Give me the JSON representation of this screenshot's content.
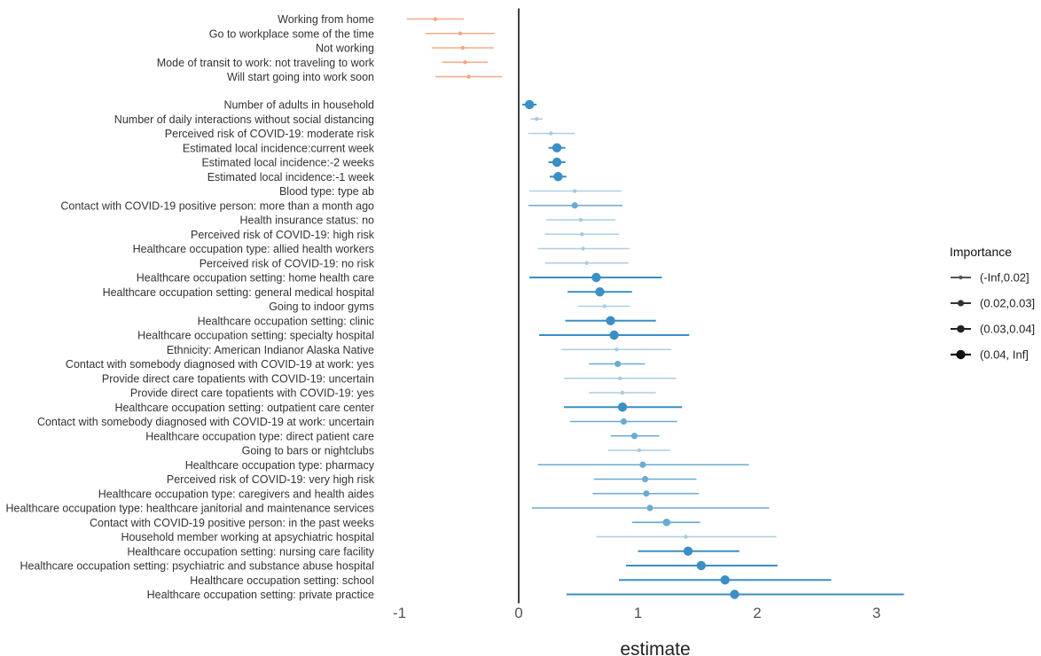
{
  "chart_data": {
    "type": "scatter",
    "subtype": "coefficient-plot-with-error-bars",
    "xlabel": "estimate",
    "xlim": [
      -1,
      3
    ],
    "xticks": [
      "-1",
      "0",
      "1",
      "2",
      "3"
    ],
    "grid": false,
    "legend": {
      "title": "Importance",
      "placement": "right",
      "entries": [
        "(-Inf,0.02]",
        "(0.02,0.03]",
        "(0.03,0.04]",
        "(0.04, Inf]"
      ]
    },
    "colors": {
      "negative": "#f4a582",
      "positive_light": "#a6cbe3",
      "positive_mid": "#6aabd2",
      "positive_dark": "#3a8fc4",
      "zero_line": "#000000"
    },
    "groups": [
      {
        "rows": [
          {
            "label": "Working from home",
            "est": -0.7,
            "lo": -0.94,
            "hi": -0.46,
            "imp": 1
          },
          {
            "label": "Go to workplace some of the time",
            "est": -0.49,
            "lo": -0.78,
            "hi": -0.2,
            "imp": 1
          },
          {
            "label": "Not working",
            "est": -0.47,
            "lo": -0.73,
            "hi": -0.21,
            "imp": 1
          },
          {
            "label": "Mode of transit to work: not traveling to work",
            "est": -0.45,
            "lo": -0.64,
            "hi": -0.26,
            "imp": 1
          },
          {
            "label": "Will start going into work soon",
            "est": -0.42,
            "lo": -0.7,
            "hi": -0.14,
            "imp": 1
          }
        ]
      },
      {
        "rows": [
          {
            "label": "Number of adults in household",
            "est": 0.09,
            "lo": 0.03,
            "hi": 0.15,
            "imp": 4
          },
          {
            "label": "Number of daily interactions without social distancing",
            "est": 0.15,
            "lo": 0.1,
            "hi": 0.2,
            "imp": 1
          },
          {
            "label": "Perceived risk of COVID-19: moderate risk",
            "est": 0.27,
            "lo": 0.08,
            "hi": 0.47,
            "imp": 1
          },
          {
            "label": "Estimated local incidence:current week",
            "est": 0.32,
            "lo": 0.25,
            "hi": 0.39,
            "imp": 4
          },
          {
            "label": "Estimated local incidence:-2 weeks",
            "est": 0.32,
            "lo": 0.25,
            "hi": 0.39,
            "imp": 4
          },
          {
            "label": "Estimated local incidence:-1 week",
            "est": 0.33,
            "lo": 0.26,
            "hi": 0.4,
            "imp": 4
          },
          {
            "label": "Blood type: type ab",
            "est": 0.47,
            "lo": 0.09,
            "hi": 0.86,
            "imp": 1
          },
          {
            "label": "Contact with COVID-19 positive person: more than a month ago",
            "est": 0.47,
            "lo": 0.08,
            "hi": 0.87,
            "imp": 2
          },
          {
            "label": "Health insurance status: no",
            "est": 0.52,
            "lo": 0.23,
            "hi": 0.81,
            "imp": 1
          },
          {
            "label": "Perceived risk of COVID-19: high risk",
            "est": 0.53,
            "lo": 0.22,
            "hi": 0.84,
            "imp": 1
          },
          {
            "label": "Healthcare occupation type: allied health workers",
            "est": 0.54,
            "lo": 0.16,
            "hi": 0.93,
            "imp": 1
          },
          {
            "label": "Perceived risk of COVID-19: no risk",
            "est": 0.57,
            "lo": 0.22,
            "hi": 0.92,
            "imp": 1
          },
          {
            "label": "Healthcare occupation setting: home health care",
            "est": 0.65,
            "lo": 0.09,
            "hi": 1.2,
            "imp": 4
          },
          {
            "label": "Healthcare occupation setting: general medical hospital",
            "est": 0.68,
            "lo": 0.41,
            "hi": 0.95,
            "imp": 4
          },
          {
            "label": "Going to indoor gyms",
            "est": 0.72,
            "lo": 0.5,
            "hi": 0.93,
            "imp": 1
          },
          {
            "label": "Healthcare occupation setting: clinic",
            "est": 0.77,
            "lo": 0.39,
            "hi": 1.15,
            "imp": 4
          },
          {
            "label": "Healthcare occupation setting: specialty hospital",
            "est": 0.8,
            "lo": 0.17,
            "hi": 1.43,
            "imp": 4
          },
          {
            "label": "Ethnicity: American Indianor Alaska Native",
            "est": 0.82,
            "lo": 0.36,
            "hi": 1.28,
            "imp": 1
          },
          {
            "label": "Contact with somebody diagnosed with COVID-19 at work: yes",
            "est": 0.83,
            "lo": 0.59,
            "hi": 1.06,
            "imp": 2
          },
          {
            "label": "Provide direct care topatients with COVID-19: uncertain",
            "est": 0.85,
            "lo": 0.38,
            "hi": 1.32,
            "imp": 1
          },
          {
            "label": "Provide direct care topatients with COVID-19: yes",
            "est": 0.87,
            "lo": 0.59,
            "hi": 1.15,
            "imp": 1
          },
          {
            "label": "Healthcare occupation setting: outpatient care center",
            "est": 0.87,
            "lo": 0.38,
            "hi": 1.37,
            "imp": 4
          },
          {
            "label": "Contact with somebody diagnosed with COVID-19 at work: uncertain",
            "est": 0.88,
            "lo": 0.43,
            "hi": 1.33,
            "imp": 2
          },
          {
            "label": "Healthcare occupation type: direct patient care",
            "est": 0.97,
            "lo": 0.77,
            "hi": 1.18,
            "imp": 2
          },
          {
            "label": "Going to bars or nightclubs",
            "est": 1.01,
            "lo": 0.75,
            "hi": 1.27,
            "imp": 1
          },
          {
            "label": "Healthcare occupation type: pharmacy",
            "est": 1.04,
            "lo": 0.16,
            "hi": 1.93,
            "imp": 2
          },
          {
            "label": "Perceived risk of COVID-19: very high risk",
            "est": 1.06,
            "lo": 0.63,
            "hi": 1.49,
            "imp": 2
          },
          {
            "label": "Healthcare occupation type: caregivers and health aides",
            "est": 1.07,
            "lo": 0.62,
            "hi": 1.51,
            "imp": 2
          },
          {
            "label": "Healthcare occupation type: healthcare janitorial and maintenance services",
            "est": 1.1,
            "lo": 0.11,
            "hi": 2.1,
            "imp": 2
          },
          {
            "label": "Contact with COVID-19 positive person: in the past weeks",
            "est": 1.24,
            "lo": 0.95,
            "hi": 1.52,
            "imp": 3
          },
          {
            "label": "Household member working at apsychiatric hospital",
            "est": 1.4,
            "lo": 0.65,
            "hi": 2.16,
            "imp": 1
          },
          {
            "label": "Healthcare occupation setting: nursing care facility",
            "est": 1.42,
            "lo": 1.0,
            "hi": 1.85,
            "imp": 4
          },
          {
            "label": "Healthcare occupation setting: psychiatric and substance abuse hospital",
            "est": 1.53,
            "lo": 0.9,
            "hi": 2.17,
            "imp": 4
          },
          {
            "label": "Healthcare occupation setting: school",
            "est": 1.73,
            "lo": 0.84,
            "hi": 2.62,
            "imp": 4
          },
          {
            "label": "Healthcare occupation setting: private practice",
            "est": 1.81,
            "lo": 0.4,
            "hi": 3.23,
            "imp": 4
          }
        ]
      }
    ]
  }
}
